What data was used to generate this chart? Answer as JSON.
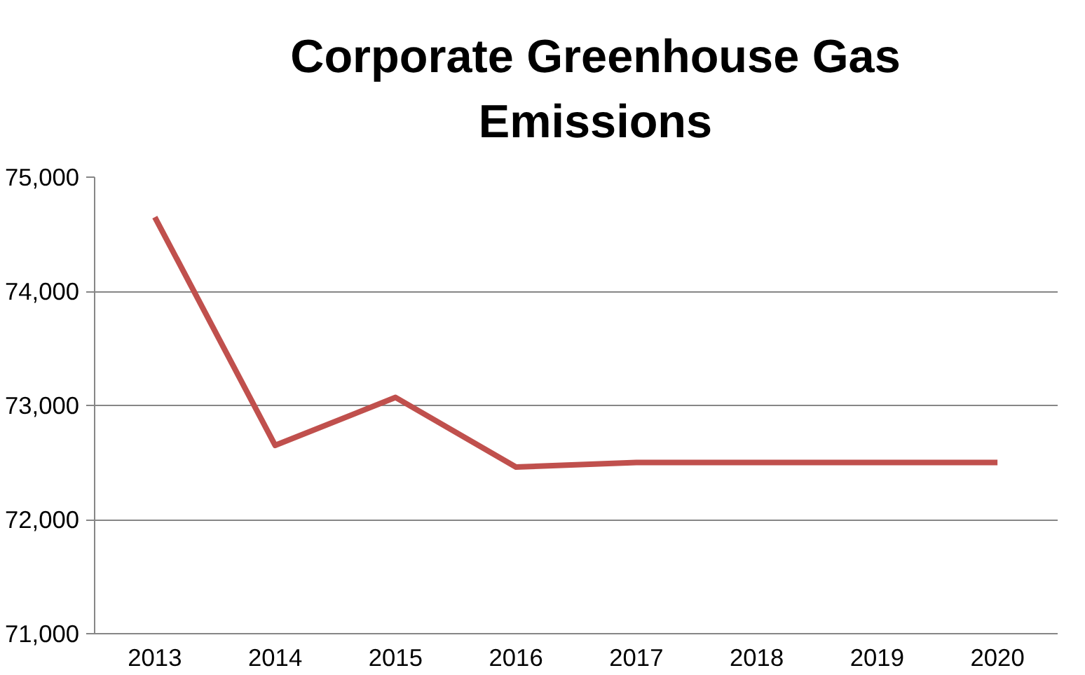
{
  "chart_data": {
    "type": "line",
    "title": "Corporate Greenhouse Gas Emissions",
    "categories": [
      "2013",
      "2014",
      "2015",
      "2016",
      "2017",
      "2018",
      "2019",
      "2020"
    ],
    "series": [
      {
        "color": "#c0504d",
        "values": [
          74650,
          72650,
          73070,
          72460,
          72500,
          72500,
          72500,
          72500
        ]
      }
    ],
    "ylim": [
      71000,
      75000
    ],
    "yticks": [
      {
        "value": 71000,
        "label": "71,000"
      },
      {
        "value": 72000,
        "label": "72,000"
      },
      {
        "value": 73000,
        "label": "73,000"
      },
      {
        "value": 74000,
        "label": "74,000"
      },
      {
        "value": 75000,
        "label": "75,000"
      }
    ],
    "grid": "y",
    "marker": "none",
    "line_style": "solid"
  }
}
